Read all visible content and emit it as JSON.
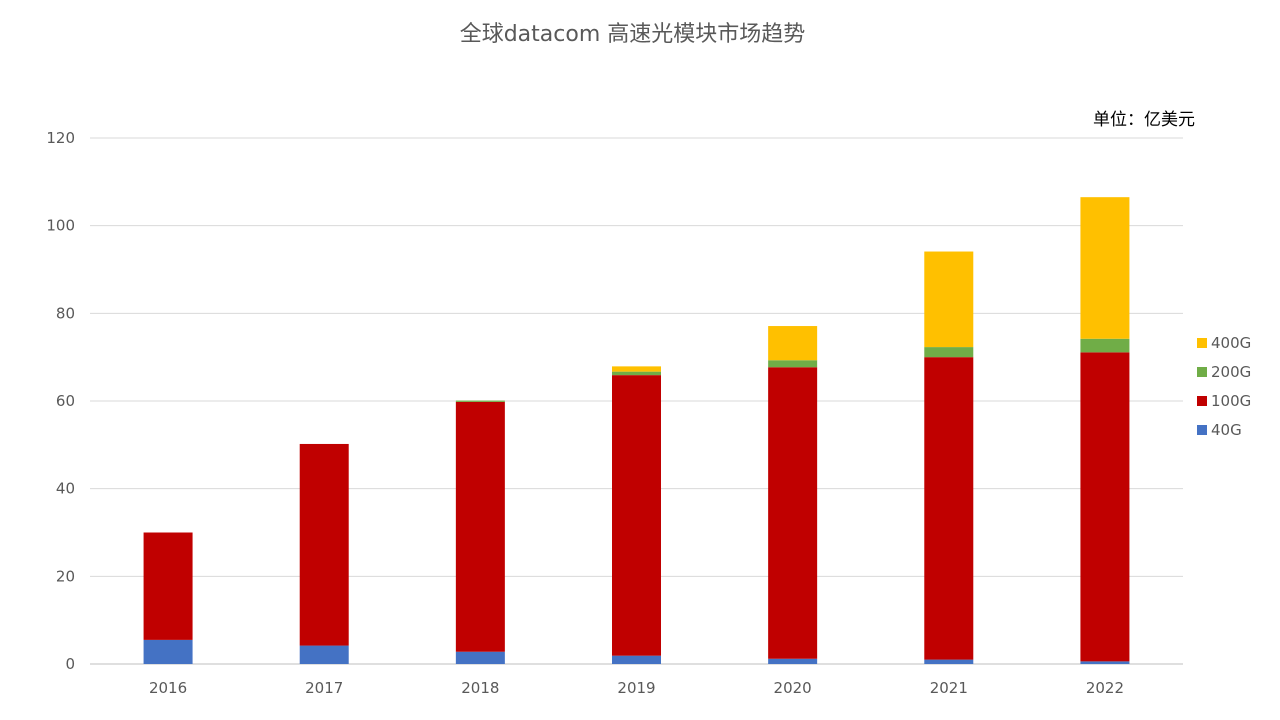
{
  "chart_data": {
    "type": "bar",
    "stacked": true,
    "title": "全球datacom 高速光模块市场趋势",
    "unit_label": "单位：亿美元",
    "categories": [
      "2016",
      "2017",
      "2018",
      "2019",
      "2020",
      "2021",
      "2022"
    ],
    "series": [
      {
        "name": "40G",
        "color": "#4472C4",
        "values": [
          5.5,
          4.2,
          2.8,
          1.9,
          1.2,
          1.0,
          0.6
        ]
      },
      {
        "name": "100G",
        "color": "#C00000",
        "values": [
          24.5,
          46.0,
          57.0,
          64.0,
          66.5,
          69.0,
          70.5
        ]
      },
      {
        "name": "200G",
        "color": "#70AD47",
        "values": [
          0,
          0,
          0.3,
          0.8,
          1.6,
          2.3,
          3.1
        ]
      },
      {
        "name": "400G",
        "color": "#FFC000",
        "values": [
          0,
          0,
          0,
          1.2,
          7.8,
          21.8,
          32.3
        ]
      }
    ],
    "yticks": [
      "0",
      "20",
      "40",
      "60",
      "80",
      "100",
      "120"
    ],
    "ylim": [
      0,
      120
    ],
    "grid": true,
    "legend_position": "right",
    "legend_order": [
      "400G",
      "200G",
      "100G",
      "40G"
    ]
  }
}
